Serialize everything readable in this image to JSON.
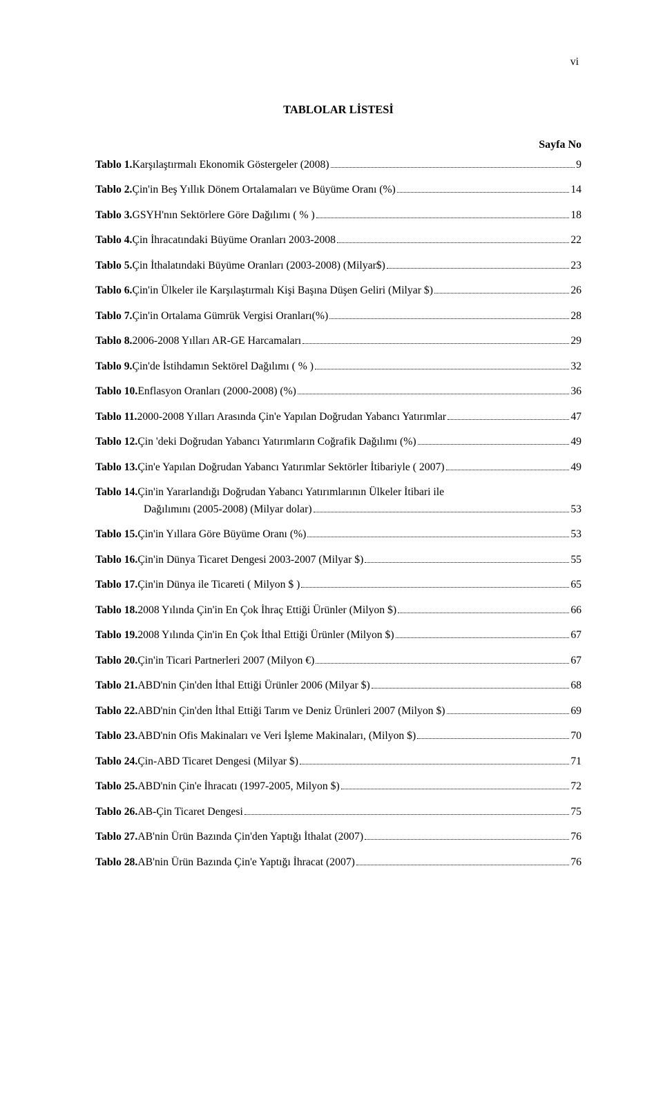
{
  "pageRoman": "vi",
  "title": "TABLOLAR LİSTESİ",
  "sayfaNo": "Sayfa No",
  "entries": [
    {
      "label": "Tablo 1.",
      "desc": " Karşılaştırmalı Ekonomik Göstergeler (2008)",
      "pg": "9"
    },
    {
      "label": "Tablo 2.",
      "desc": " Çin'in Beş Yıllık Dönem Ortalamaları ve Büyüme Oranı (%)",
      "pg": "14"
    },
    {
      "label": "Tablo 3.",
      "desc": " GSYH'nın Sektörlere Göre Dağılımı ( % )",
      "pg": "18"
    },
    {
      "label": "Tablo 4.",
      "desc": " Çin İhracatındaki Büyüme Oranları 2003-2008",
      "pg": "22"
    },
    {
      "label": "Tablo 5.",
      "desc": " Çin İthalatındaki Büyüme Oranları (2003-2008) (Milyar$)",
      "pg": "23"
    },
    {
      "label": "Tablo 6.",
      "desc": " Çin'in Ülkeler ile Karşılaştırmalı Kişi Başına Düşen Geliri  (Milyar $)",
      "pg": "26"
    },
    {
      "label": "Tablo 7.",
      "desc": " Çin'in Ortalama Gümrük Vergisi Oranları(%)",
      "pg": "28"
    },
    {
      "label": "Tablo 8.",
      "desc": " 2006-2008 Yılları AR-GE Harcamaları",
      "pg": "29"
    },
    {
      "label": "Tablo 9.",
      "desc": " Çin'de İstihdamın Sektörel Dağılımı ( % )",
      "pg": "32"
    },
    {
      "label": "Tablo 10.",
      "desc": " Enflasyon Oranları (2000-2008) (%)",
      "pg": "36"
    },
    {
      "label": "Tablo 11.",
      "desc": " 2000-2008 Yılları Arasında Çin'e Yapılan Doğrudan Yabancı Yatırımlar",
      "pg": "47"
    },
    {
      "label": "Tablo 12.",
      "desc": " Çin 'deki Doğrudan Yabancı Yatırımların Coğrafik Dağılımı (%)",
      "pg": "49"
    },
    {
      "label": "Tablo 13.",
      "desc": " Çin'e Yapılan   Doğrudan Yabancı  Yatırımlar Sektörler İtibariyle ( 2007)",
      "pg": "49"
    },
    {
      "label": "Tablo 14.",
      "desc": " Çin'in Yararlandığı Doğrudan Yabancı Yatırımlarının Ülkeler İtibari ile",
      "desc2": "Dağılımını (2005-2008) (Milyar dolar)",
      "pg": "53",
      "wrap": true
    },
    {
      "label": "Tablo 15.",
      "desc": " Çin'in Yıllara Göre Büyüme Oranı (%)",
      "pg": "53"
    },
    {
      "label": "Tablo 16.",
      "desc": " Çin'in Dünya Ticaret Dengesi 2003-2007 (Milyar $)",
      "pg": "55"
    },
    {
      "label": "Tablo 17.",
      "desc": " Çin'in Dünya ile Ticareti ( Milyon $ )",
      "pg": "65"
    },
    {
      "label": "Tablo 18.",
      "desc": " 2008 Yılında Çin'in En Çok İhraç Ettiği Ürünler (Milyon $)",
      "pg": "66"
    },
    {
      "label": "Tablo 19.",
      "desc": " 2008 Yılında Çin'in En Çok İthal  Ettiği Ürünler (Milyon $)",
      "pg": "67"
    },
    {
      "label": "Tablo 20.",
      "desc": " Çin'in Ticari Partnerleri 2007 (Milyon €)",
      "pg": "67"
    },
    {
      "label": "Tablo 21.",
      "desc": " ABD'nin Çin'den İthal Ettiği Ürünler 2006  (Milyar $)",
      "pg": "68"
    },
    {
      "label": "Tablo 22.",
      "desc": " ABD'nin Çin'den İthal Ettiği Tarım ve Deniz Ürünleri 2007 (Milyon $)",
      "pg": "69"
    },
    {
      "label": "Tablo 23.",
      "desc": " ABD'nin Ofis Makinaları ve Veri İşleme Makinaları, (Milyon $)",
      "pg": "70"
    },
    {
      "label": "Tablo 24.",
      "desc": " Çin-ABD Ticaret Dengesi (Milyar $)",
      "pg": "71"
    },
    {
      "label": "Tablo 25.",
      "desc": " ABD'nin Çin'e İhracatı (1997-2005, Milyon $)",
      "pg": "72"
    },
    {
      "label": "Tablo 26.",
      "desc": " AB-Çin Ticaret Dengesi",
      "pg": "75"
    },
    {
      "label": "Tablo 27.",
      "desc": " AB'nin Ürün Bazında  Çin'den Yaptığı İthalat (2007)",
      "pg": "76"
    },
    {
      "label": "Tablo 28.",
      "desc": " AB'nin Ürün Bazında Çin'e Yaptığı İhracat (2007)",
      "pg": "76"
    }
  ]
}
